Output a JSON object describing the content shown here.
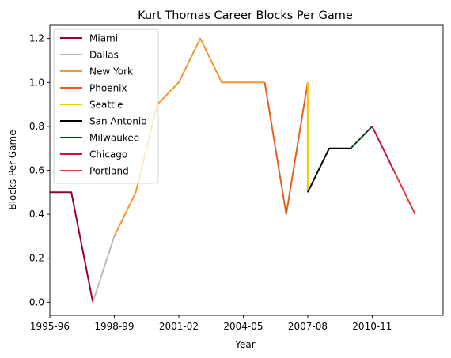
{
  "chart_data": {
    "type": "line",
    "title": "Kurt Thomas  Career Blocks Per Game",
    "xlabel": "Year",
    "ylabel": "Blocks Per Game",
    "xlim": [
      1995.0,
      2013.3
    ],
    "ylim": [
      -0.06,
      1.26
    ],
    "x_ticks": [
      {
        "year": 1995,
        "label": "1995-96"
      },
      {
        "year": 1998,
        "label": "1998-99"
      },
      {
        "year": 2001,
        "label": "2001-02"
      },
      {
        "year": 2004,
        "label": "2004-05"
      },
      {
        "year": 2007,
        "label": "2007-08"
      },
      {
        "year": 2010,
        "label": "2010-11"
      }
    ],
    "y_ticks": [
      {
        "value": 0.0,
        "label": "0.0"
      },
      {
        "value": 0.2,
        "label": "0.2"
      },
      {
        "value": 0.4,
        "label": "0.4"
      },
      {
        "value": 0.6,
        "label": "0.6"
      },
      {
        "value": 0.8,
        "label": "0.8"
      },
      {
        "value": 1.0,
        "label": "1.0"
      },
      {
        "value": 1.2,
        "label": "1.2"
      }
    ],
    "grid": false,
    "legend_position": "top-left",
    "series": [
      {
        "name": "Miami",
        "color": "#98002e",
        "points": [
          [
            1995,
            0.5
          ],
          [
            1996,
            0.5
          ],
          [
            1997,
            0.0
          ]
        ]
      },
      {
        "name": "Dallas",
        "color": "#bbbbbb",
        "points": [
          [
            1997,
            0.0
          ],
          [
            1998,
            0.3
          ]
        ]
      },
      {
        "name": "New York",
        "color": "#f3982b",
        "points": [
          [
            1998,
            0.3
          ],
          [
            1999,
            0.5
          ],
          [
            2000,
            0.9
          ],
          [
            2001,
            1.0
          ],
          [
            2002,
            1.2
          ],
          [
            2003,
            1.0
          ],
          [
            2004,
            1.0
          ],
          [
            2005,
            1.0
          ]
        ]
      },
      {
        "name": "Phoenix",
        "color": "#e56020",
        "points": [
          [
            2005,
            1.0
          ],
          [
            2006,
            0.4
          ],
          [
            2007,
            1.0
          ]
        ]
      },
      {
        "name": "Seattle",
        "color": "#ffc200",
        "points": [
          [
            2007,
            1.0
          ],
          [
            2007,
            0.5
          ]
        ]
      },
      {
        "name": "San Antonio",
        "color": "#000000",
        "points": [
          [
            2007,
            0.5
          ],
          [
            2008,
            0.7
          ],
          [
            2009,
            0.7
          ]
        ]
      },
      {
        "name": "Milwaukee",
        "color": "#00471b",
        "points": [
          [
            2009,
            0.7
          ],
          [
            2010,
            0.8
          ]
        ]
      },
      {
        "name": "Chicago",
        "color": "#ce1141",
        "points": [
          [
            2010,
            0.8
          ],
          [
            2011,
            0.6
          ]
        ]
      },
      {
        "name": "Portland",
        "color": "#e03a3e",
        "points": [
          [
            2011,
            0.6
          ],
          [
            2012,
            0.4
          ]
        ]
      }
    ]
  }
}
